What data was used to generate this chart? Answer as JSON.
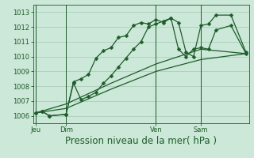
{
  "title": "Pression niveau de la mer( hPa )",
  "bg_color": "#cce8d8",
  "grid_color": "#a8c8b8",
  "line_color": "#1e5c2a",
  "ylim": [
    1005.5,
    1013.5
  ],
  "yticks": [
    1006,
    1007,
    1008,
    1009,
    1010,
    1011,
    1012,
    1013
  ],
  "xtick_labels": [
    "Jeu",
    "Dim",
    "Ven",
    "Sam"
  ],
  "xtick_positions": [
    0,
    2,
    8,
    11
  ],
  "xlim": [
    -0.2,
    14.2
  ],
  "vline_positions": [
    0,
    2,
    8,
    11
  ],
  "series": [
    {
      "x": [
        0,
        0.4,
        0.9,
        2.0,
        2.5,
        3.0,
        3.5,
        4.0,
        4.5,
        5.0,
        5.5,
        6.0,
        6.5,
        7.0,
        7.5,
        8.0,
        8.5,
        9.0,
        9.5,
        10.0,
        10.5,
        11.0,
        11.5,
        12.0,
        13.0,
        14.0
      ],
      "y": [
        1006.2,
        1006.3,
        1006.0,
        1006.1,
        1008.3,
        1008.5,
        1008.8,
        1009.9,
        1010.4,
        1010.6,
        1011.3,
        1011.4,
        1012.1,
        1012.3,
        1012.2,
        1012.5,
        1012.3,
        1012.6,
        1012.3,
        1010.3,
        1010.0,
        1012.1,
        1012.2,
        1012.8,
        1012.8,
        1010.3
      ],
      "marker": "D",
      "markersize": 2.5,
      "linewidth": 0.9
    },
    {
      "x": [
        0,
        0.4,
        0.9,
        2.0,
        2.5,
        3.0,
        3.5,
        4.0,
        4.5,
        5.0,
        5.5,
        6.0,
        6.5,
        7.0,
        7.5,
        8.0,
        8.5,
        9.0,
        9.5,
        10.0,
        10.5,
        11.0,
        11.5,
        12.0,
        13.0,
        14.0
      ],
      "y": [
        1006.2,
        1006.3,
        1006.0,
        1006.1,
        1008.2,
        1007.1,
        1007.3,
        1007.6,
        1008.2,
        1008.7,
        1009.3,
        1009.9,
        1010.5,
        1011.0,
        1012.0,
        1012.2,
        1012.4,
        1012.6,
        1010.5,
        1010.0,
        1010.5,
        1010.6,
        1010.5,
        1011.8,
        1012.1,
        1010.2
      ],
      "marker": "D",
      "markersize": 2.5,
      "linewidth": 0.9
    },
    {
      "x": [
        0,
        2,
        5,
        8,
        11,
        14
      ],
      "y": [
        1006.2,
        1006.5,
        1007.8,
        1009.0,
        1009.8,
        1010.2
      ],
      "marker": null,
      "markersize": 0,
      "linewidth": 0.9
    },
    {
      "x": [
        0,
        2,
        5,
        8,
        11,
        14
      ],
      "y": [
        1006.2,
        1006.8,
        1008.2,
        1009.5,
        1010.5,
        1010.2
      ],
      "marker": null,
      "markersize": 0,
      "linewidth": 0.9
    }
  ],
  "tick_fontsize": 6.0,
  "xlabel_fontsize": 8.5
}
